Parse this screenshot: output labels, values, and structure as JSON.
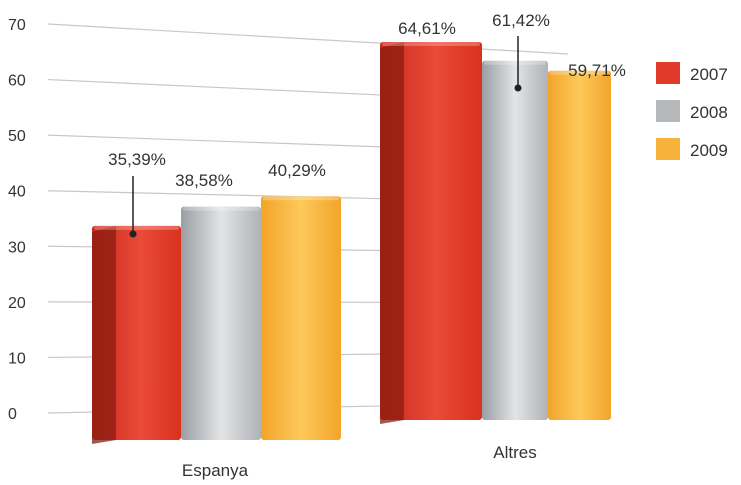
{
  "chart_data": {
    "type": "bar",
    "categories": [
      "Espanya",
      "Altres"
    ],
    "series": [
      {
        "name": "2007",
        "values": [
          35.39,
          64.61
        ],
        "labels": [
          "35,39%",
          "64,61%"
        ],
        "color": "#e03a2a"
      },
      {
        "name": "2008",
        "values": [
          38.58,
          61.42
        ],
        "labels": [
          "38,58%",
          "61,42%"
        ],
        "color": "#b5b8bb"
      },
      {
        "name": "2009",
        "values": [
          40.29,
          59.71
        ],
        "labels": [
          "40,29%",
          "59,71%"
        ],
        "color": "#f6b23a"
      }
    ],
    "yticks": [
      "0",
      "10",
      "20",
      "30",
      "40",
      "50",
      "60",
      "70"
    ],
    "ylim": [
      0,
      70
    ],
    "grid": true,
    "legend": "right",
    "title": "",
    "xlabel": "",
    "ylabel": ""
  }
}
